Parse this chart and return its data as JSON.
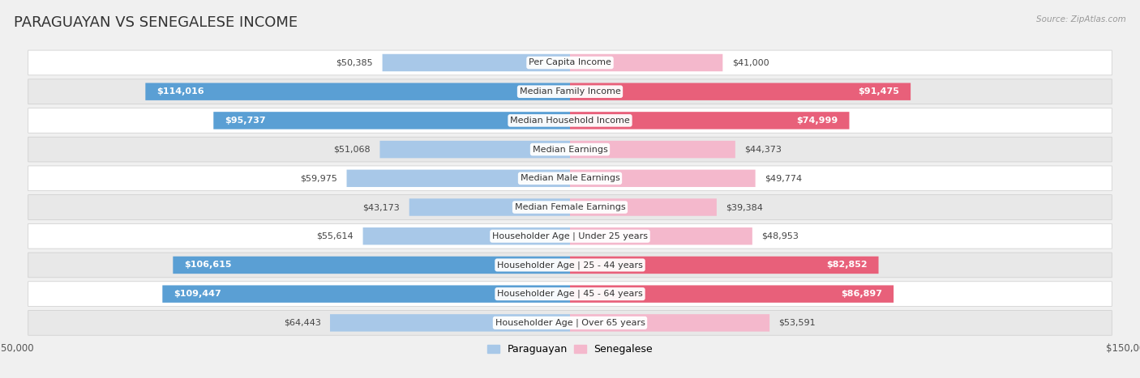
{
  "title": "PARAGUAYAN VS SENEGALESE INCOME",
  "source": "Source: ZipAtlas.com",
  "categories": [
    "Per Capita Income",
    "Median Family Income",
    "Median Household Income",
    "Median Earnings",
    "Median Male Earnings",
    "Median Female Earnings",
    "Householder Age | Under 25 years",
    "Householder Age | 25 - 44 years",
    "Householder Age | 45 - 64 years",
    "Householder Age | Over 65 years"
  ],
  "paraguayan_values": [
    50385,
    114016,
    95737,
    51068,
    59975,
    43173,
    55614,
    106615,
    109447,
    64443
  ],
  "senegalese_values": [
    41000,
    91475,
    74999,
    44373,
    49774,
    39384,
    48953,
    82852,
    86897,
    53591
  ],
  "paraguayan_labels": [
    "$50,385",
    "$114,016",
    "$95,737",
    "$51,068",
    "$59,975",
    "$43,173",
    "$55,614",
    "$106,615",
    "$109,447",
    "$64,443"
  ],
  "senegalese_labels": [
    "$41,000",
    "$91,475",
    "$74,999",
    "$44,373",
    "$49,774",
    "$39,384",
    "$48,953",
    "$82,852",
    "$86,897",
    "$53,591"
  ],
  "paraguayan_color_normal": "#a8c8e8",
  "senegalese_color_normal": "#f4b8cc",
  "paraguayan_color_highlight": "#5a9fd4",
  "senegalese_color_highlight": "#e8607a",
  "highlight_rows": [
    1,
    2,
    7,
    8
  ],
  "max_value": 150000,
  "bg_color": "#f0f0f0",
  "row_bg_even": "#ffffff",
  "row_bg_odd": "#e8e8e8",
  "legend_paraguayan": "Paraguayan",
  "legend_senegalese": "Senegalese",
  "bar_height": 0.6,
  "title_fontsize": 13,
  "label_fontsize": 8,
  "category_fontsize": 8
}
